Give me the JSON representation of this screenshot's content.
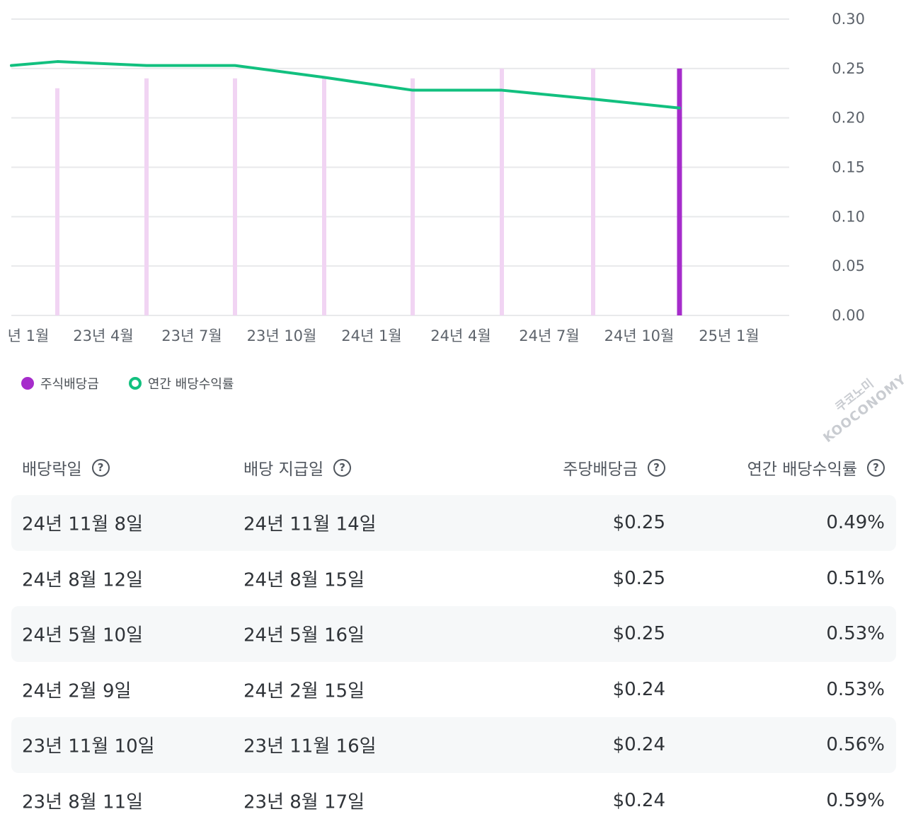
{
  "chart_data": {
    "type": "bar+line",
    "y_ticks": [
      "0.30",
      "0.25",
      "0.20",
      "0.15",
      "0.10",
      "0.05",
      "0.00"
    ],
    "ylim": [
      0,
      0.3
    ],
    "x_tick_labels": [
      "년 1월",
      "23년 4월",
      "23년 7월",
      "23년 10월",
      "24년 1월",
      "24년 4월",
      "24년 7월",
      "24년 10월",
      "25년 1월"
    ],
    "grid": true,
    "series": [
      {
        "name": "주식배당금",
        "kind": "bar",
        "color": "#a62ccb",
        "values": [
          0.23,
          0.24,
          0.24,
          0.24,
          0.24,
          0.25,
          0.25,
          0.25
        ],
        "highlight_last": true
      },
      {
        "name": "연간 배당수익률",
        "kind": "line",
        "color": "#12c07f",
        "values": [
          0.253,
          0.257,
          0.253,
          0.253,
          0.241,
          0.228,
          0.228,
          0.219,
          0.21
        ]
      }
    ]
  },
  "legend": [
    {
      "label": "주식배당금",
      "style": "filled",
      "color": "#a62ccb"
    },
    {
      "label": "연간 배당수익률",
      "style": "ring",
      "color": "#12c07f"
    }
  ],
  "watermark": {
    "line1": "쿠코노미",
    "line2": "KOOCONOMY"
  },
  "table": {
    "headers": [
      "배당락일",
      "배당 지급일",
      "주당배당금",
      "연간 배당수익률"
    ],
    "help_icon": "?",
    "rows": [
      [
        "24년 11월 8일",
        "24년 11월 14일",
        "$0.25",
        "0.49%"
      ],
      [
        "24년 8월 12일",
        "24년 8월 15일",
        "$0.25",
        "0.51%"
      ],
      [
        "24년 5월 10일",
        "24년 5월 16일",
        "$0.25",
        "0.53%"
      ],
      [
        "24년 2월 9일",
        "24년 2월 15일",
        "$0.24",
        "0.53%"
      ],
      [
        "23년 11월 10일",
        "23년 11월 16일",
        "$0.24",
        "0.56%"
      ],
      [
        "23년 8월 11일",
        "23년 8월 17일",
        "$0.24",
        "0.59%"
      ]
    ]
  }
}
